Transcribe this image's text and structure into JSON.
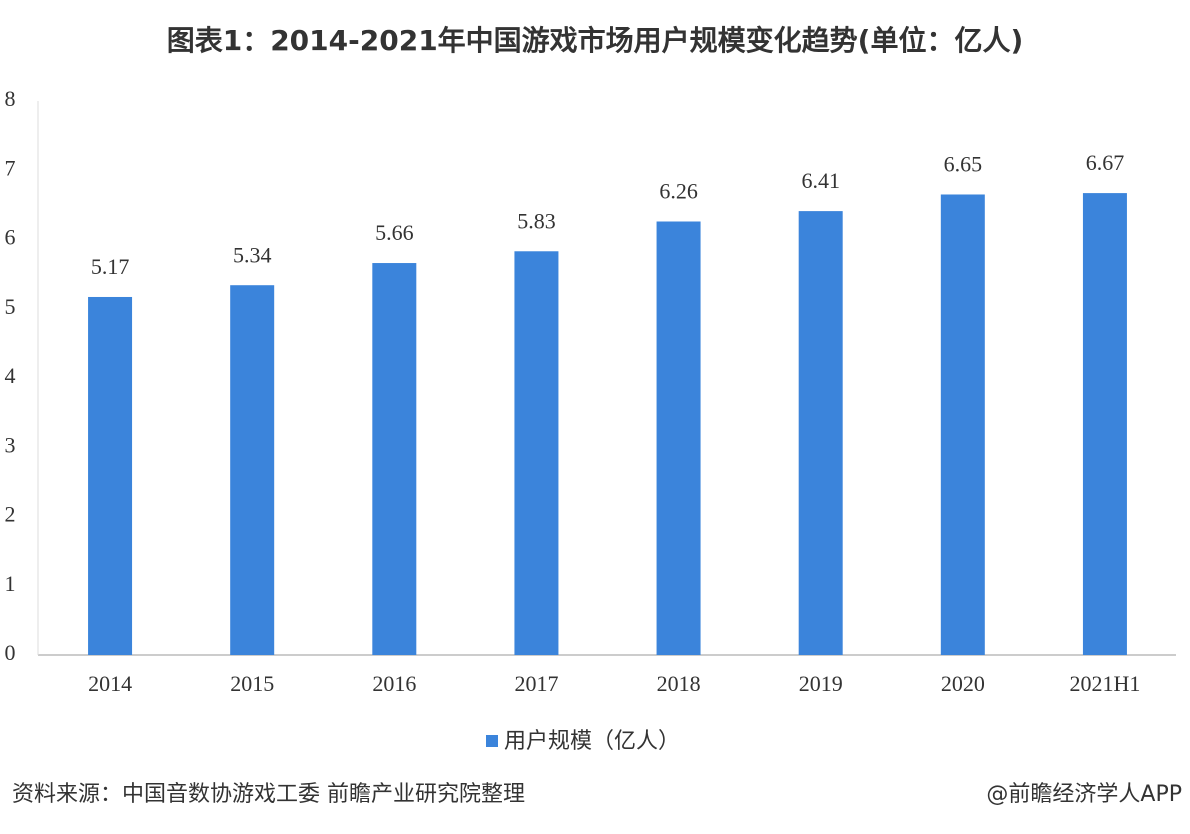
{
  "chart_data": {
    "type": "bar",
    "title": "图表1：2014-2021年中国游戏市场用户规模变化趋势(单位：亿人)",
    "categories": [
      "2014",
      "2015",
      "2016",
      "2017",
      "2018",
      "2019",
      "2020",
      "2021H1"
    ],
    "series": [
      {
        "name": "用户规模（亿人）",
        "color": "#3b84db",
        "values": [
          5.17,
          5.34,
          5.66,
          5.83,
          6.26,
          6.41,
          6.65,
          6.67
        ]
      }
    ],
    "ylim": [
      0,
      8
    ],
    "yticks": [
      0,
      1,
      2,
      3,
      4,
      5,
      6,
      7,
      8
    ],
    "grid": false,
    "legend": "bottom",
    "source": "资料来源：中国音数协游戏工委 前瞻产业研究院整理",
    "credit": "@前瞻经济学人APP"
  }
}
